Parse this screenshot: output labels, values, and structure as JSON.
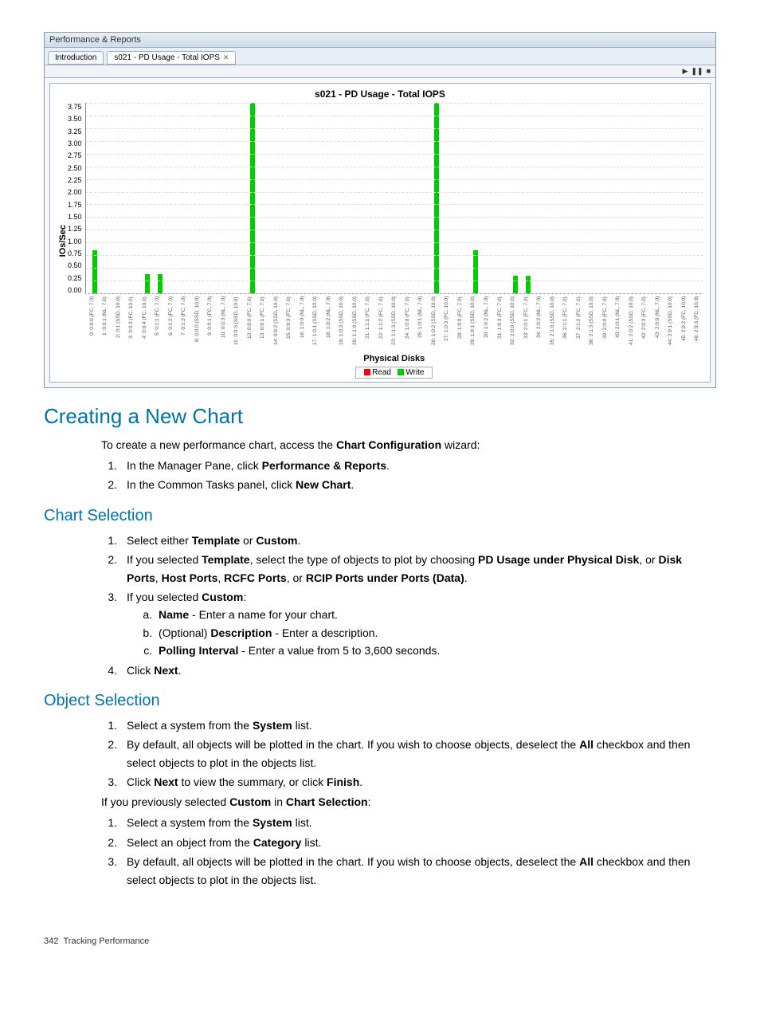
{
  "chart_window": {
    "titlebar": "Performance & Reports",
    "tabs": [
      {
        "label": "Introduction",
        "active": false,
        "closable": false
      },
      {
        "label": "s021 - PD Usage - Total IOPS",
        "active": true,
        "closable": true
      }
    ],
    "controls": [
      "▶",
      "❚❚",
      "■"
    ],
    "chart": {
      "type": "bar",
      "title": "s021 - PD Usage - Total IOPS",
      "yaxis_label": "IOs/Sec",
      "xaxis_label": "Physical Disks",
      "ymax": 3.75,
      "yticks": [
        "3.75",
        "3.50",
        "3.25",
        "3.00",
        "2.75",
        "2.50",
        "2.25",
        "2.00",
        "1.75",
        "1.50",
        "1.25",
        "1.00",
        "0.75",
        "0.50",
        "0.25",
        "0.00"
      ],
      "colors": {
        "read": "#ff0000",
        "write": "#00cc00"
      },
      "bars": [
        {
          "x": "0: 0:0:0 (FC, 7.0)",
          "read": 0,
          "write": 0.85
        },
        {
          "x": "1: 0:0:1 (NL, 7.0)",
          "read": 0,
          "write": 0
        },
        {
          "x": "2: 0:1 (SSD, 10.0)",
          "read": 0,
          "write": 0
        },
        {
          "x": "3: 0:0:3 (FC, 10.0)",
          "read": 0,
          "write": 0
        },
        {
          "x": "4: 0:0:4 (FC, 10.0)",
          "read": 0,
          "write": 0.38
        },
        {
          "x": "5: 0:1:1 (FC, 7.0)",
          "read": 0,
          "write": 0.38
        },
        {
          "x": "6: 0:1:2 (FC, 7.0)",
          "read": 0,
          "write": 0
        },
        {
          "x": "7: 0:1:3 (FC, 7.0)",
          "read": 0,
          "write": 0
        },
        {
          "x": "8: 0:0:0 (SSD, 10.0)",
          "read": 0,
          "write": 0
        },
        {
          "x": "9: 0:0:1 (FC, 7.0)",
          "read": 0,
          "write": 0
        },
        {
          "x": "10: 0:0:3 (NL, 7.0)",
          "read": 0,
          "write": 0
        },
        {
          "x": "11: 0:0:3 (SSD, 10.0)",
          "read": 0,
          "write": 0
        },
        {
          "x": "12: 0:9:0 (FC, 7.0)",
          "read": 0,
          "write": 3.75
        },
        {
          "x": "13: 0:9:1 (FC, 7.0)",
          "read": 0,
          "write": 0
        },
        {
          "x": "14: 0:9:2 (SSD, 10.0)",
          "read": 0,
          "write": 0
        },
        {
          "x": "15: 0:9:3 (FC, 7.0)",
          "read": 0,
          "write": 0
        },
        {
          "x": "16: 1:0:0 (NL, 7.0)",
          "read": 0,
          "write": 0
        },
        {
          "x": "17: 1:0:1 (SSD, 10.0)",
          "read": 0,
          "write": 0
        },
        {
          "x": "18: 1:0:2 (NL, 7.0)",
          "read": 0,
          "write": 0
        },
        {
          "x": "19: 1:0:3 (SSD, 10.0)",
          "read": 0,
          "write": 0
        },
        {
          "x": "20: 1:1:0 (SSD, 10.0)",
          "read": 0,
          "write": 0
        },
        {
          "x": "21: 1:1:1 (FC, 7.0)",
          "read": 0,
          "write": 0
        },
        {
          "x": "22: 1:1:2 (FC, 7.0)",
          "read": 0,
          "write": 0
        },
        {
          "x": "23: 1:1:3 (SSD, 10.0)",
          "read": 0,
          "write": 0
        },
        {
          "x": "24: 1:0:0 (FC, 7.0)",
          "read": 0,
          "write": 0
        },
        {
          "x": "25: 1:0:1 (NL, 7.0)",
          "read": 0,
          "write": 0
        },
        {
          "x": "26: 1:0:2 (SSD, 10.0)",
          "read": 0,
          "write": 3.75
        },
        {
          "x": "27: 1:0:3 (FC, 10.0)",
          "read": 0,
          "write": 0
        },
        {
          "x": "28: 1:9:0 (FC, 7.0)",
          "read": 0,
          "write": 0
        },
        {
          "x": "29: 1:9:1 (SSD, 10.0)",
          "read": 0,
          "write": 0.85
        },
        {
          "x": "30: 1:9:2 (NL, 7.0)",
          "read": 0,
          "write": 0
        },
        {
          "x": "31: 1:9:3 (FC, 7.0)",
          "read": 0,
          "write": 0
        },
        {
          "x": "32: 2:0:0 (SSD, 10.0)",
          "read": 0,
          "write": 0.35
        },
        {
          "x": "33: 2:0:1 (FC, 7.0)",
          "read": 0,
          "write": 0.35
        },
        {
          "x": "34: 2:0:2 (NL, 7.0)",
          "read": 0,
          "write": 0
        },
        {
          "x": "35: 2:1:0 (SSD, 10.0)",
          "read": 0,
          "write": 0
        },
        {
          "x": "36: 2:1:1 (FC, 7.0)",
          "read": 0,
          "write": 0
        },
        {
          "x": "37: 2:1:2 (FC, 7.0)",
          "read": 0,
          "write": 0
        },
        {
          "x": "38: 2:1:3 (SSD, 10.0)",
          "read": 0,
          "write": 0
        },
        {
          "x": "39: 2:0:0 (FC, 7.0)",
          "read": 0,
          "write": 0
        },
        {
          "x": "40: 2:0:1 (NL, 7.0)",
          "read": 0,
          "write": 0
        },
        {
          "x": "41: 2:0:2 (SSD, 10.0)",
          "read": 0,
          "write": 0
        },
        {
          "x": "42: 2:0:3 (FC, 7.0)",
          "read": 0,
          "write": 0
        },
        {
          "x": "43: 2:9:0 (NL, 7.0)",
          "read": 0,
          "write": 0
        },
        {
          "x": "44: 2:9:1 (SSD, 10.0)",
          "read": 0,
          "write": 0
        },
        {
          "x": "45: 2:9:2 (FC, 10.0)",
          "read": 0,
          "write": 0
        },
        {
          "x": "46: 2:9:3 (FC, 10.0)",
          "read": 0,
          "write": 0
        }
      ],
      "legend": [
        {
          "label": "Read",
          "color": "#ff0000"
        },
        {
          "label": "Write",
          "color": "#00cc00"
        }
      ]
    }
  },
  "sections": {
    "creating": {
      "heading": "Creating a New Chart",
      "intro_pre": "To create a new performance chart, access the ",
      "intro_bold": "Chart Configuration",
      "intro_post": " wizard:",
      "li1_pre": "In the Manager Pane, click ",
      "li1_bold": "Performance & Reports",
      "li1_post": ".",
      "li2_pre": "In the Common Tasks panel, click ",
      "li2_bold": "New Chart",
      "li2_post": "."
    },
    "chart_selection": {
      "heading": "Chart Selection",
      "li1_pre": "Select either ",
      "li1_b1": "Template",
      "li1_mid": " or ",
      "li1_b2": "Custom",
      "li1_post": ".",
      "li2_pre": "If you selected ",
      "li2_b1": "Template",
      "li2_mid1": ", select the type of objects to plot by choosing ",
      "li2_b2": "PD Usage under Physical Disk",
      "li2_mid2": ", or ",
      "li2_b3": "Disk Ports",
      "li2_mid3": ", ",
      "li2_b4": "Host Ports",
      "li2_mid4": ", ",
      "li2_b5": "RCFC Ports",
      "li2_mid5": ", or ",
      "li2_b6": "RCIP Ports under Ports (Data)",
      "li2_post": ".",
      "li3_pre": "If you selected ",
      "li3_b1": "Custom",
      "li3_post": ":",
      "li3a_b": "Name",
      "li3a_post": " - Enter a name for your chart.",
      "li3b_pre": "(Optional) ",
      "li3b_b": "Description",
      "li3b_post": " - Enter a description.",
      "li3c_b": "Polling Interval",
      "li3c_post": " - Enter a value from 5 to 3,600 seconds.",
      "li4_pre": "Click ",
      "li4_b": "Next",
      "li4_post": "."
    },
    "object_selection": {
      "heading": "Object Selection",
      "li1_pre": "Select a system from the ",
      "li1_b": "System",
      "li1_post": " list.",
      "li2_pre": "By default, all objects will be plotted in the chart. If you wish to choose objects, deselect the ",
      "li2_b": "All",
      "li2_post": " checkbox and then select objects to plot in the objects list.",
      "li3_pre": "Click ",
      "li3_b1": "Next",
      "li3_mid": " to view the summary, or click ",
      "li3_b2": "Finish",
      "li3_post": ".",
      "para_pre": "If you previously selected ",
      "para_b1": "Custom",
      "para_mid": " in ",
      "para_b2": "Chart Selection",
      "para_post": ":",
      "li4_pre": "Select a system from the ",
      "li4_b": "System",
      "li4_post": " list.",
      "li5_pre": "Select an object from the ",
      "li5_b": "Category",
      "li5_post": " list.",
      "li6_pre": "By default, all objects will be plotted in the chart. If you wish to choose objects, deselect the ",
      "li6_b": "All",
      "li6_post": " checkbox and then select objects to plot in the objects list."
    }
  },
  "footer": {
    "page": "342",
    "title": "Tracking Performance"
  }
}
